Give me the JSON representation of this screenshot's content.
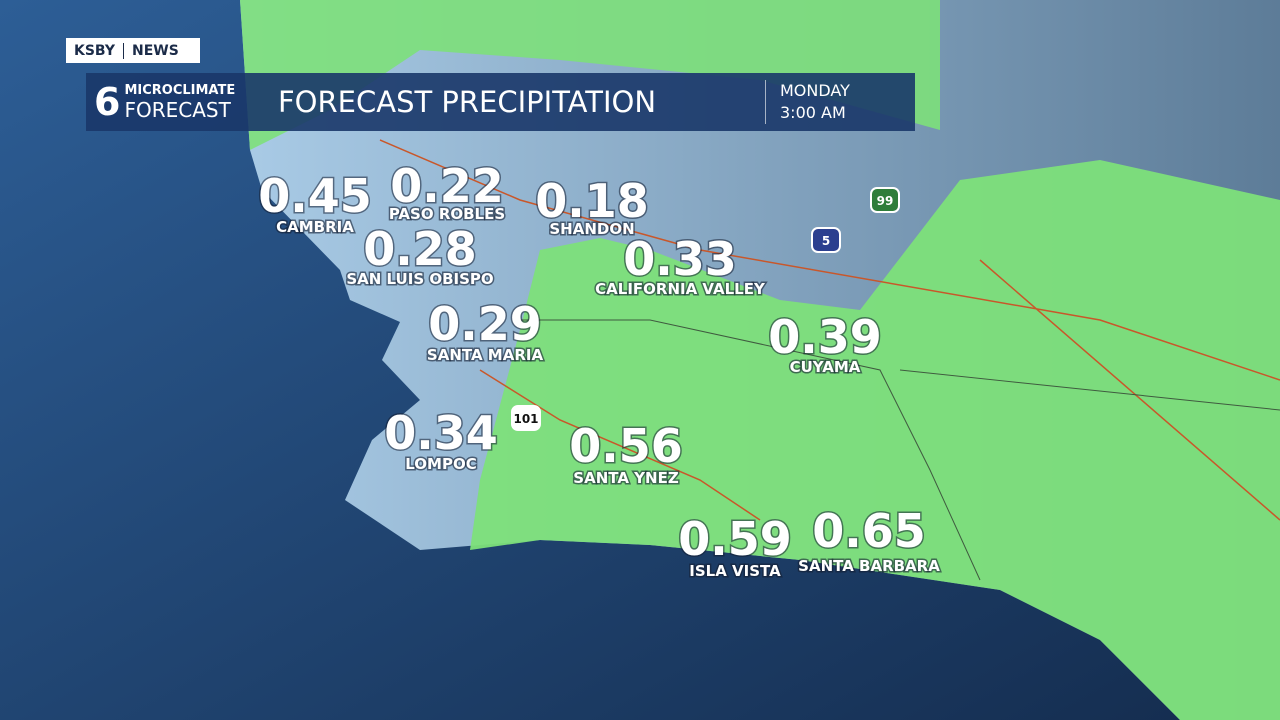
{
  "header": {
    "station": "KSBY",
    "network": "NEWS",
    "logo_top": "MICROCLIMATE",
    "logo_bottom": "FORECAST",
    "title": "FORECAST PRECIPITATION",
    "day": "MONDAY",
    "time": "3:00 AM"
  },
  "shields": [
    "99",
    "5",
    "101"
  ],
  "locations": [
    {
      "name": "CAMBRIA",
      "value": 0.45
    },
    {
      "name": "PASO ROBLES",
      "value": 0.22
    },
    {
      "name": "SHANDON",
      "value": 0.18
    },
    {
      "name": "SAN LUIS OBISPO",
      "value": 0.28
    },
    {
      "name": "CALIFORNIA VALLEY",
      "value": 0.33
    },
    {
      "name": "SANTA MARIA",
      "value": 0.29
    },
    {
      "name": "CUYAMA",
      "value": 0.39
    },
    {
      "name": "LOMPOC",
      "value": 0.34
    },
    {
      "name": "SANTA YNEZ",
      "value": 0.56
    },
    {
      "name": "ISLA VISTA",
      "value": 0.59
    },
    {
      "name": "SANTA BARBARA",
      "value": 0.65
    }
  ]
}
